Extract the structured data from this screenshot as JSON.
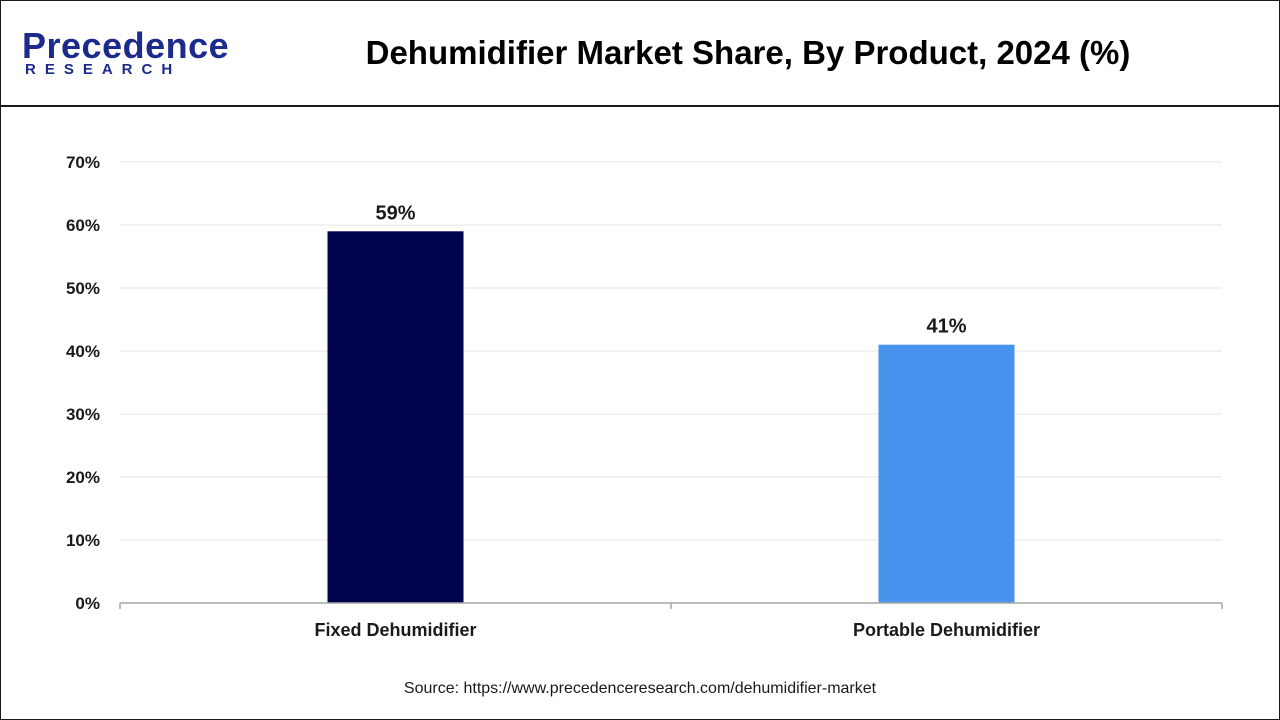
{
  "header": {
    "logo_word": "Precedence",
    "logo_sub": "RESEARCH",
    "title": "Dehumidifier Market Share, By Product, 2024 (%)"
  },
  "source": "Source: https://www.precedenceresearch.com/dehumidifier-market",
  "chart_data": {
    "type": "bar",
    "categories": [
      "Fixed Dehumidifier",
      "Portable Dehumidifier"
    ],
    "values": [
      59,
      41
    ],
    "data_labels": [
      "59%",
      "41%"
    ],
    "colors": [
      "#00044f",
      "#4793ee"
    ],
    "ylim": [
      0,
      70
    ],
    "yticks": [
      0,
      10,
      20,
      30,
      40,
      50,
      60,
      70
    ],
    "ytick_labels": [
      "0%",
      "10%",
      "20%",
      "30%",
      "40%",
      "50%",
      "60%",
      "70%"
    ],
    "grid": true,
    "legend": "none",
    "title": "Dehumidifier Market Share, By Product, 2024 (%)",
    "xlabel": "",
    "ylabel": ""
  }
}
